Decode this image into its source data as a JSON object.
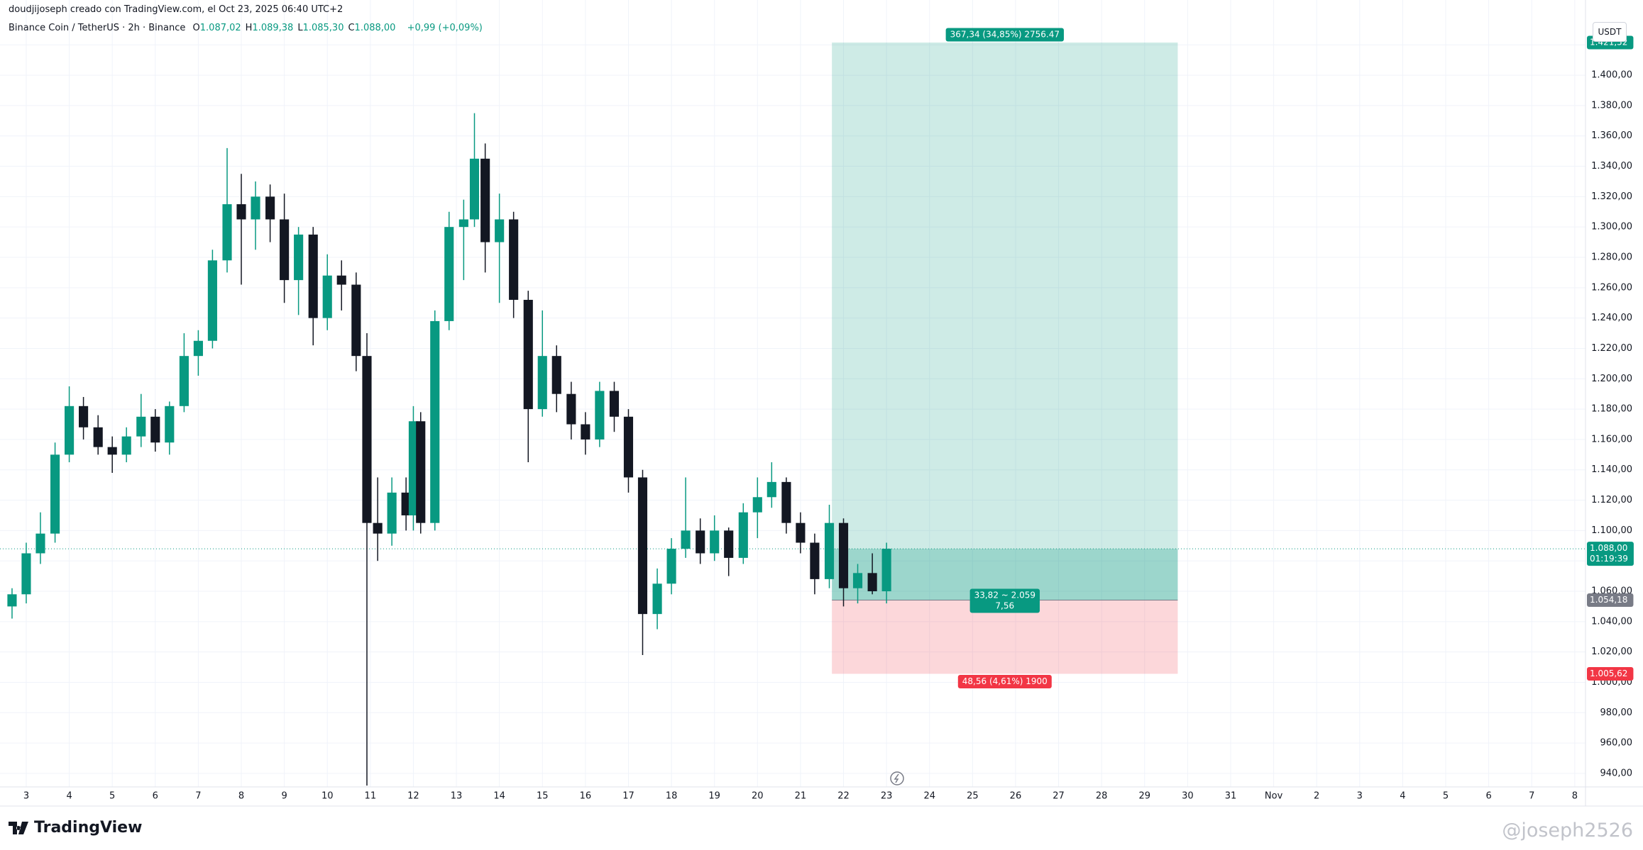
{
  "header": {
    "credit": "doudjijoseph creado con TradingView.com, el Oct 23, 2025 06:40 UTC+2",
    "symbol": "Binance Coin / TetherUS · 2h · Binance",
    "ohlc": [
      {
        "key": "O",
        "value": "1.087,02"
      },
      {
        "key": "H",
        "value": "1.089,38"
      },
      {
        "key": "L",
        "value": "1.085,30"
      },
      {
        "key": "C",
        "value": "1.088,00"
      }
    ],
    "change": "+0,99 (+0,09%)"
  },
  "currency": "USDT",
  "footer": {
    "brand": "TradingView",
    "watermark": "@joseph2526"
  },
  "chart_data": {
    "type": "candlestick",
    "up_color": "#089981",
    "down_color": "#131722",
    "grid": true,
    "x": [
      2.67,
      3.0,
      3.33,
      3.67,
      4.0,
      4.33,
      4.67,
      5.0,
      5.33,
      5.67,
      6.0,
      6.33,
      6.67,
      7.0,
      7.33,
      7.67,
      8.0,
      8.33,
      8.67,
      9.0,
      9.33,
      9.67,
      10.0,
      10.33,
      10.67,
      10.92,
      11.17,
      11.5,
      11.83,
      12.0,
      12.17,
      12.5,
      12.83,
      13.17,
      13.42,
      13.67,
      14.0,
      14.33,
      14.67,
      15.0,
      15.33,
      15.67,
      16.0,
      16.33,
      16.67,
      17.0,
      17.33,
      17.67,
      18.0,
      18.33,
      18.67,
      19.0,
      19.33,
      19.67,
      20.0,
      20.33,
      20.67,
      21.0,
      21.33,
      21.67,
      22.0,
      22.33,
      22.67,
      23.0
    ],
    "open": [
      1050,
      1058,
      1085,
      1098,
      1150,
      1182,
      1168,
      1155,
      1150,
      1162,
      1175,
      1158,
      1182,
      1215,
      1225,
      1278,
      1315,
      1305,
      1320,
      1305,
      1265,
      1295,
      1240,
      1268,
      1262,
      1215,
      1105,
      1098,
      1125,
      1110,
      1172,
      1105,
      1238,
      1300,
      1305,
      1345,
      1290,
      1305,
      1252,
      1180,
      1215,
      1190,
      1170,
      1160,
      1192,
      1175,
      1135,
      1045,
      1065,
      1088,
      1100,
      1085,
      1100,
      1082,
      1112,
      1122,
      1132,
      1105,
      1092,
      1068,
      1105,
      1062,
      1072,
      1060
    ],
    "high": [
      1062,
      1092,
      1112,
      1158,
      1195,
      1188,
      1176,
      1162,
      1168,
      1190,
      1180,
      1185,
      1230,
      1232,
      1285,
      1352,
      1335,
      1330,
      1328,
      1322,
      1300,
      1300,
      1282,
      1278,
      1270,
      1230,
      1135,
      1135,
      1135,
      1182,
      1178,
      1245,
      1310,
      1318,
      1375,
      1355,
      1322,
      1310,
      1258,
      1245,
      1222,
      1198,
      1178,
      1198,
      1198,
      1180,
      1140,
      1075,
      1095,
      1135,
      1108,
      1110,
      1102,
      1118,
      1135,
      1145,
      1135,
      1112,
      1098,
      1117,
      1108,
      1078,
      1085,
      1092
    ],
    "low": [
      1042,
      1052,
      1078,
      1092,
      1145,
      1160,
      1150,
      1138,
      1145,
      1155,
      1152,
      1150,
      1178,
      1202,
      1220,
      1270,
      1262,
      1285,
      1290,
      1250,
      1242,
      1222,
      1232,
      1245,
      1205,
      932,
      1080,
      1090,
      1100,
      1100,
      1098,
      1100,
      1232,
      1265,
      1300,
      1270,
      1250,
      1240,
      1145,
      1175,
      1178,
      1160,
      1150,
      1155,
      1165,
      1125,
      1018,
      1035,
      1058,
      1082,
      1078,
      1080,
      1070,
      1078,
      1095,
      1115,
      1098,
      1085,
      1058,
      1062,
      1050,
      1052,
      1058,
      1052
    ],
    "close": [
      1058,
      1085,
      1098,
      1150,
      1182,
      1168,
      1155,
      1150,
      1162,
      1175,
      1158,
      1182,
      1215,
      1225,
      1278,
      1315,
      1305,
      1320,
      1305,
      1265,
      1295,
      1240,
      1268,
      1262,
      1215,
      1105,
      1098,
      1125,
      1110,
      1172,
      1105,
      1238,
      1300,
      1305,
      1345,
      1290,
      1305,
      1252,
      1180,
      1215,
      1190,
      1170,
      1160,
      1192,
      1175,
      1135,
      1045,
      1065,
      1088,
      1100,
      1085,
      1100,
      1082,
      1112,
      1122,
      1132,
      1105,
      1092,
      1068,
      1105,
      1062,
      1072,
      1060,
      1088
    ],
    "xlim": [
      2.39,
      39.25
    ],
    "xticks": [
      3,
      4,
      5,
      6,
      7,
      8,
      9,
      10,
      11,
      12,
      13,
      14,
      15,
      16,
      17,
      18,
      19,
      20,
      21,
      22,
      23,
      24,
      25,
      26,
      27,
      28,
      29,
      30,
      31,
      {
        "value": 32,
        "label": "Nov"
      },
      {
        "value": 33,
        "label": "2"
      },
      {
        "value": 34,
        "label": "3"
      },
      {
        "value": 35,
        "label": "4"
      },
      {
        "value": 36,
        "label": "5"
      },
      {
        "value": 37,
        "label": "6"
      },
      {
        "value": 38,
        "label": "7"
      },
      {
        "value": 39,
        "label": "8"
      }
    ],
    "ylim": [
      931.1,
      1437.4
    ],
    "yticks": [
      {
        "value": 940,
        "label": "940,00"
      },
      {
        "value": 960,
        "label": "960,00"
      },
      {
        "value": 980,
        "label": "980,00"
      },
      {
        "value": 1000,
        "label": "1.000,00"
      },
      {
        "value": 1020,
        "label": "1.020,00"
      },
      {
        "value": 1040,
        "label": "1.040,00"
      },
      {
        "value": 1060,
        "label": "1.060,00"
      },
      {
        "value": 1080,
        "label": "1.080,00"
      },
      {
        "value": 1100,
        "label": "1.100,00"
      },
      {
        "value": 1120,
        "label": "1.120,00"
      },
      {
        "value": 1140,
        "label": "1.140,00"
      },
      {
        "value": 1160,
        "label": "1.160,00"
      },
      {
        "value": 1180,
        "label": "1.180,00"
      },
      {
        "value": 1200,
        "label": "1.200,00"
      },
      {
        "value": 1220,
        "label": "1.220,00"
      },
      {
        "value": 1240,
        "label": "1.240,00"
      },
      {
        "value": 1260,
        "label": "1.260,00"
      },
      {
        "value": 1280,
        "label": "1.280,00"
      },
      {
        "value": 1300,
        "label": "1.300,00"
      },
      {
        "value": 1320,
        "label": "1.320,00"
      },
      {
        "value": 1340,
        "label": "1.340,00"
      },
      {
        "value": 1360,
        "label": "1.360,00"
      },
      {
        "value": 1380,
        "label": "1.380,00"
      },
      {
        "value": 1400,
        "label": "1.400,00"
      },
      {
        "value": 1420,
        "label": "1.420,00"
      }
    ],
    "position": {
      "x_start": 21.73,
      "x_end": 29.77,
      "profit_color": "#089981",
      "loss_color": "#f23645",
      "entry_color": "#787b86",
      "target": {
        "value": 1421.52,
        "label": "1.421,52"
      },
      "entry": {
        "value": 1054.18,
        "label": "1.054,18"
      },
      "stop": {
        "value": 1005.62,
        "label": "1.005,62"
      },
      "target_text": "367,34 (34,85%) 2756.47",
      "entry_text": [
        "33,82 ~ 2.059",
        "7,56"
      ],
      "stop_text": "48,56 (4,61%) 1900"
    },
    "last_price": {
      "value": 1088.0,
      "label": "1.088,00",
      "countdown": "01:19:39"
    }
  }
}
